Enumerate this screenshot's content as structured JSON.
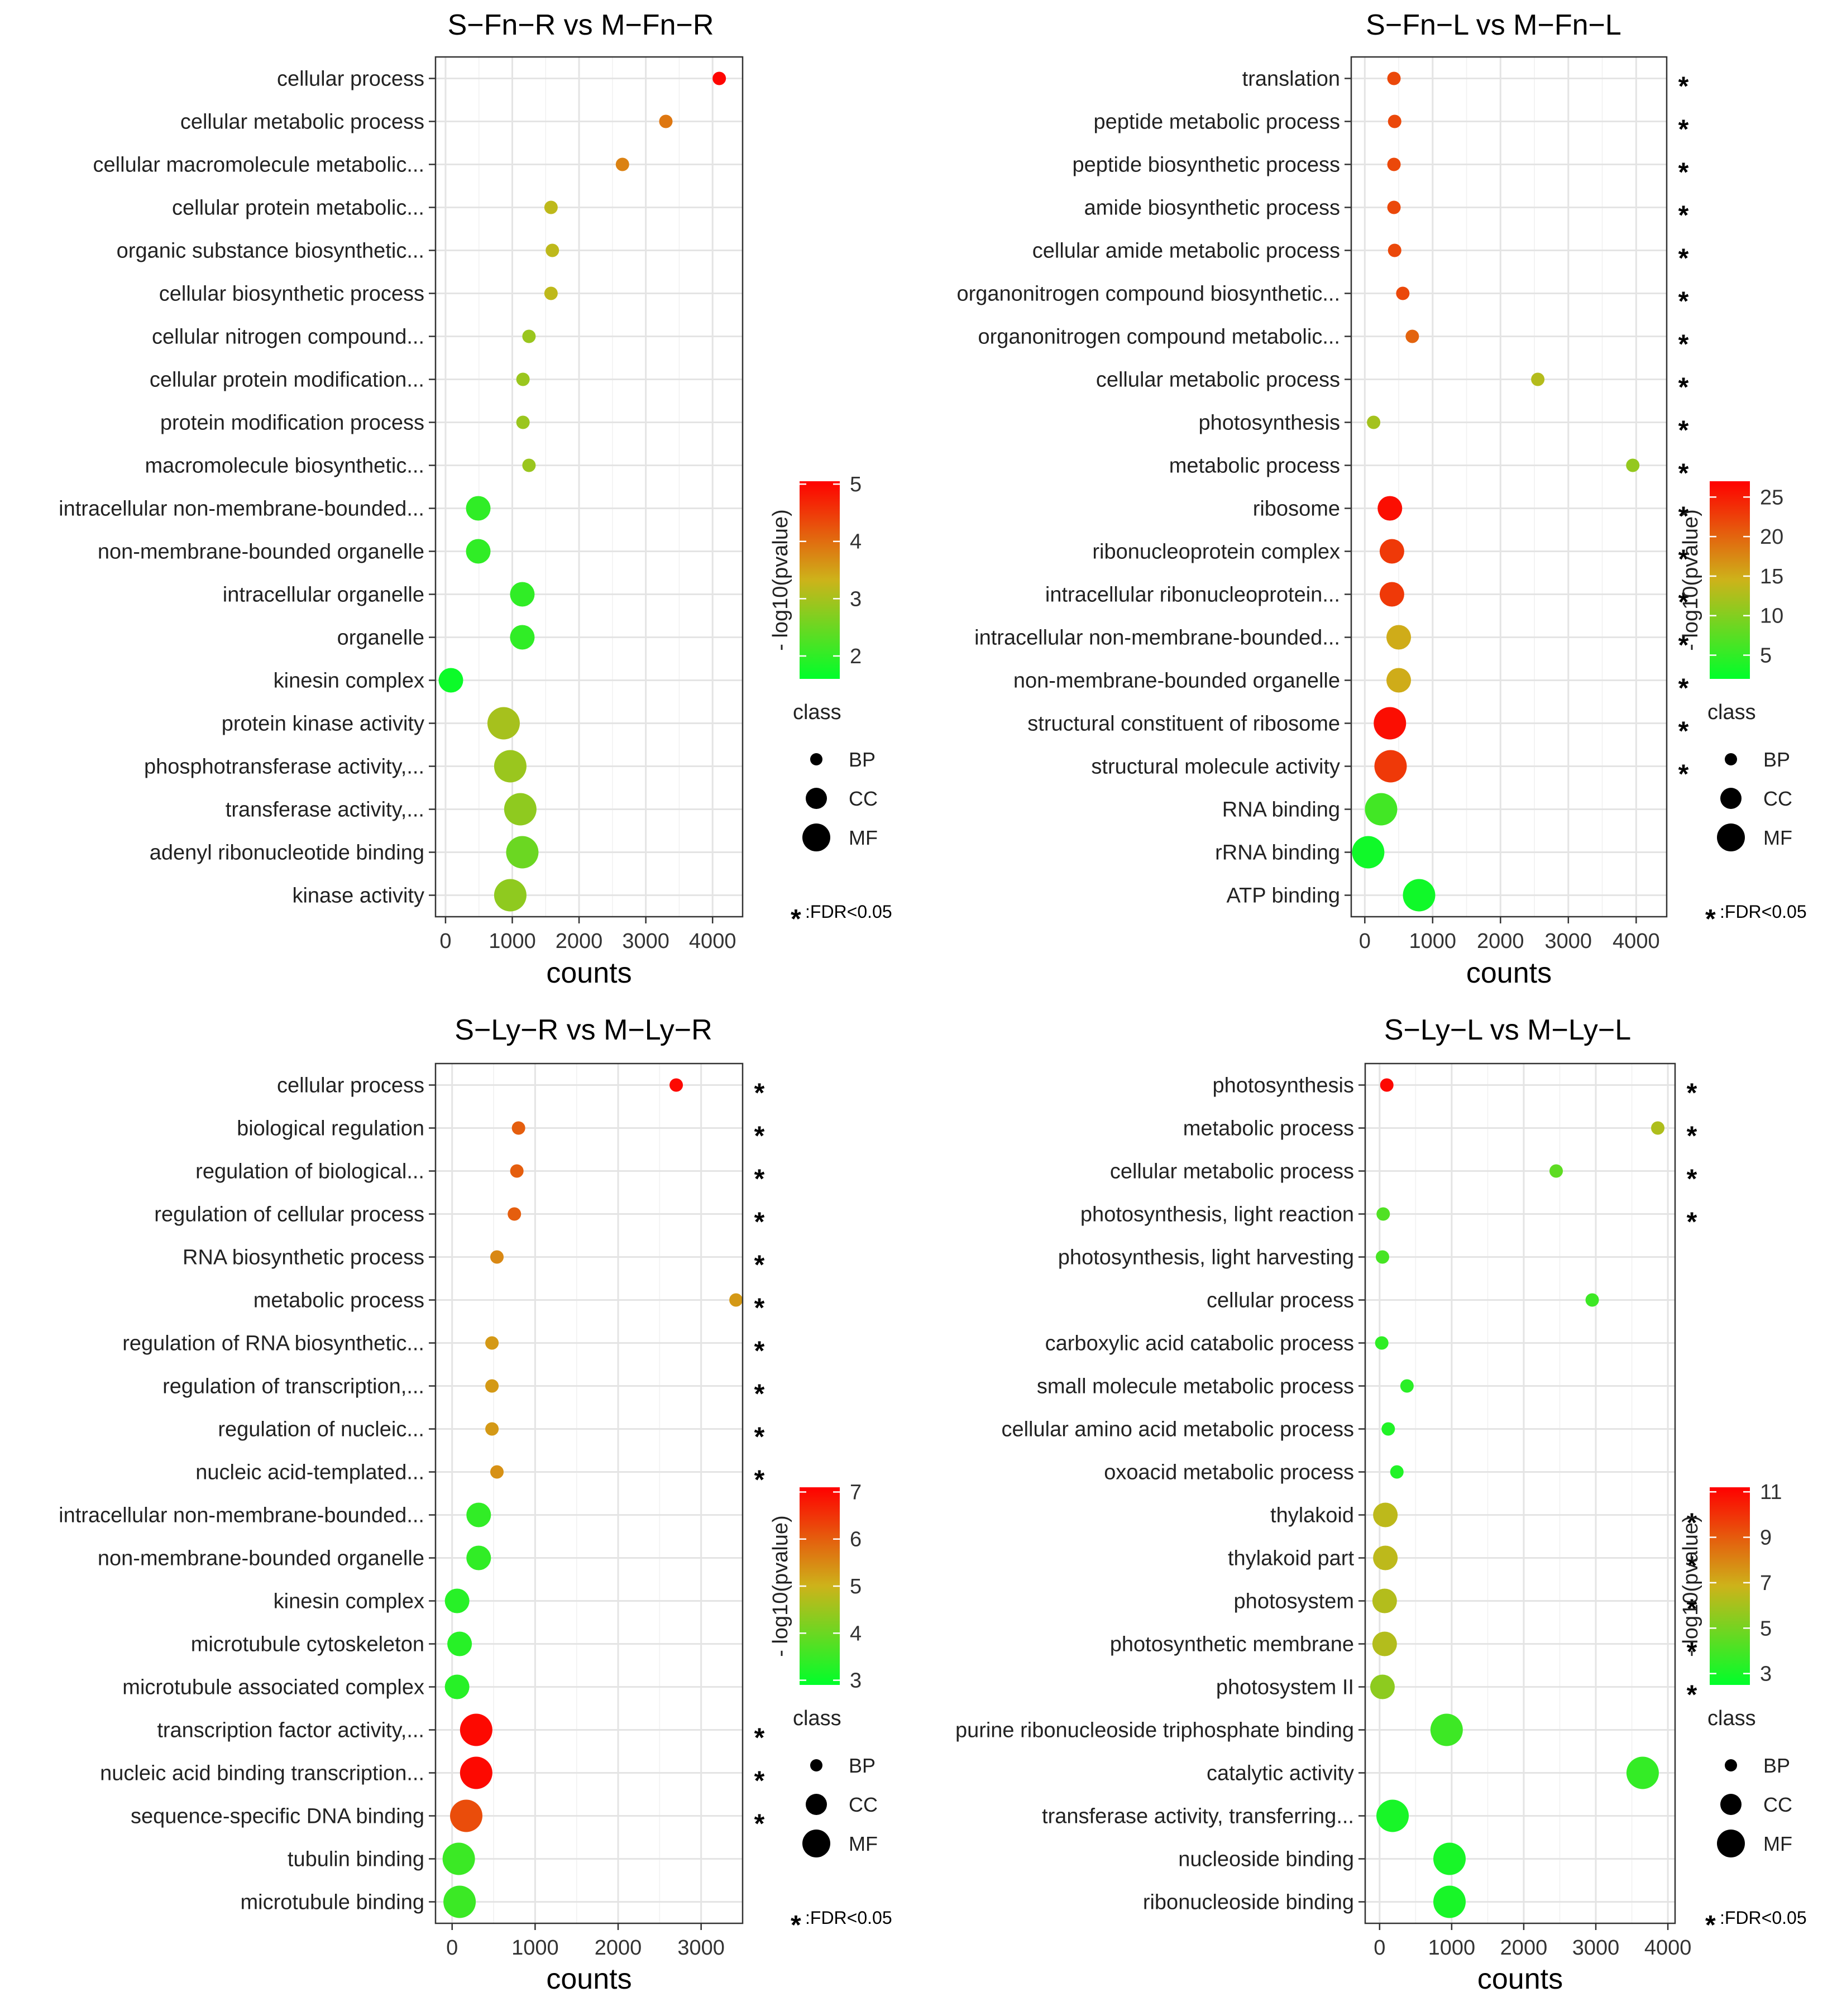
{
  "chart_data": [
    {
      "type": "scatter",
      "title": "S−Fn−R vs M−Fn−R",
      "xlabel": "counts",
      "xlim": [
        -150,
        4450
      ],
      "xticks": [
        0,
        1000,
        2000,
        3000,
        4000
      ],
      "color_label": "- log10(pvalue)",
      "color_range": [
        1.6,
        5.05
      ],
      "color_ticks": [
        2,
        3,
        4,
        5
      ],
      "size_legend": {
        "title": "class",
        "items": [
          "BP",
          "CC",
          "MF"
        ]
      },
      "fdr_note": ":FDR<0.05",
      "points": [
        {
          "term": "cellular process",
          "count": 4100,
          "pvalue": 5.0,
          "class": "BP",
          "fdr": false
        },
        {
          "term": "cellular metabolic process",
          "count": 3300,
          "pvalue": 3.9,
          "class": "BP",
          "fdr": false
        },
        {
          "term": "cellular macromolecule metabolic...",
          "count": 2650,
          "pvalue": 3.8,
          "class": "BP",
          "fdr": false
        },
        {
          "term": "cellular protein metabolic...",
          "count": 1580,
          "pvalue": 3.2,
          "class": "BP",
          "fdr": false
        },
        {
          "term": "organic substance biosynthetic...",
          "count": 1600,
          "pvalue": 3.2,
          "class": "BP",
          "fdr": false
        },
        {
          "term": "cellular biosynthetic process",
          "count": 1580,
          "pvalue": 3.2,
          "class": "BP",
          "fdr": false
        },
        {
          "term": "cellular nitrogen compound...",
          "count": 1250,
          "pvalue": 2.9,
          "class": "BP",
          "fdr": false
        },
        {
          "term": "cellular protein modification...",
          "count": 1160,
          "pvalue": 2.9,
          "class": "BP",
          "fdr": false
        },
        {
          "term": "protein modification process",
          "count": 1160,
          "pvalue": 2.9,
          "class": "BP",
          "fdr": false
        },
        {
          "term": "macromolecule biosynthetic...",
          "count": 1250,
          "pvalue": 2.9,
          "class": "BP",
          "fdr": false
        },
        {
          "term": "intracellular non-membrane-bounded...",
          "count": 490,
          "pvalue": 2.0,
          "class": "CC",
          "fdr": false
        },
        {
          "term": "non-membrane-bounded organelle",
          "count": 490,
          "pvalue": 2.0,
          "class": "CC",
          "fdr": false
        },
        {
          "term": "intracellular organelle",
          "count": 1150,
          "pvalue": 2.0,
          "class": "CC",
          "fdr": false
        },
        {
          "term": "organelle",
          "count": 1150,
          "pvalue": 2.0,
          "class": "CC",
          "fdr": false
        },
        {
          "term": "kinesin complex",
          "count": 80,
          "pvalue": 1.7,
          "class": "CC",
          "fdr": false
        },
        {
          "term": "protein kinase activity",
          "count": 870,
          "pvalue": 3.0,
          "class": "MF",
          "fdr": false
        },
        {
          "term": "phosphotransferase activity,...",
          "count": 970,
          "pvalue": 2.9,
          "class": "MF",
          "fdr": false
        },
        {
          "term": "transferase activity,...",
          "count": 1120,
          "pvalue": 2.8,
          "class": "MF",
          "fdr": false
        },
        {
          "term": "adenyl ribonucleotide binding",
          "count": 1150,
          "pvalue": 2.5,
          "class": "MF",
          "fdr": false
        },
        {
          "term": "kinase activity",
          "count": 970,
          "pvalue": 2.8,
          "class": "MF",
          "fdr": false
        }
      ]
    },
    {
      "type": "scatter",
      "title": "S−Fn−L vs M−Fn−L",
      "xlabel": "counts",
      "xlim": [
        -200,
        4450
      ],
      "xticks": [
        0,
        1000,
        2000,
        3000,
        4000
      ],
      "color_label": "- log10(pvalue)",
      "color_range": [
        2,
        27
      ],
      "color_ticks": [
        5,
        10,
        15,
        20,
        25
      ],
      "size_legend": {
        "title": "class",
        "items": [
          "BP",
          "CC",
          "MF"
        ]
      },
      "fdr_note": ":FDR<0.05",
      "points": [
        {
          "term": "translation",
          "count": 430,
          "pvalue": 22,
          "class": "BP",
          "fdr": true
        },
        {
          "term": "peptide metabolic process",
          "count": 440,
          "pvalue": 22,
          "class": "BP",
          "fdr": true
        },
        {
          "term": "peptide biosynthetic process",
          "count": 430,
          "pvalue": 22,
          "class": "BP",
          "fdr": true
        },
        {
          "term": "amide biosynthetic process",
          "count": 430,
          "pvalue": 22,
          "class": "BP",
          "fdr": true
        },
        {
          "term": "cellular amide metabolic process",
          "count": 440,
          "pvalue": 22,
          "class": "BP",
          "fdr": true
        },
        {
          "term": "organonitrogen compound biosynthetic...",
          "count": 560,
          "pvalue": 22,
          "class": "BP",
          "fdr": true
        },
        {
          "term": "organonitrogen compound metabolic...",
          "count": 700,
          "pvalue": 20,
          "class": "BP",
          "fdr": true
        },
        {
          "term": "cellular metabolic process",
          "count": 2550,
          "pvalue": 13,
          "class": "BP",
          "fdr": true
        },
        {
          "term": "photosynthesis",
          "count": 130,
          "pvalue": 12,
          "class": "BP",
          "fdr": true
        },
        {
          "term": "metabolic process",
          "count": 3950,
          "pvalue": 11,
          "class": "BP",
          "fdr": true
        },
        {
          "term": "ribosome",
          "count": 370,
          "pvalue": 26,
          "class": "CC",
          "fdr": true
        },
        {
          "term": "ribonucleoprotein complex",
          "count": 400,
          "pvalue": 23,
          "class": "CC",
          "fdr": true
        },
        {
          "term": "intracellular ribonucleoprotein...",
          "count": 400,
          "pvalue": 23,
          "class": "CC",
          "fdr": true
        },
        {
          "term": "intracellular non-membrane-bounded...",
          "count": 500,
          "pvalue": 15,
          "class": "CC",
          "fdr": true
        },
        {
          "term": "non-membrane-bounded organelle",
          "count": 500,
          "pvalue": 15,
          "class": "CC",
          "fdr": true
        },
        {
          "term": "structural constituent of ribosome",
          "count": 370,
          "pvalue": 26,
          "class": "MF",
          "fdr": true
        },
        {
          "term": "structural molecule activity",
          "count": 380,
          "pvalue": 23,
          "class": "MF",
          "fdr": true
        },
        {
          "term": "RNA binding",
          "count": 240,
          "pvalue": 6,
          "class": "MF",
          "fdr": false
        },
        {
          "term": "rRNA binding",
          "count": 50,
          "pvalue": 3,
          "class": "MF",
          "fdr": false
        },
        {
          "term": "ATP binding",
          "count": 800,
          "pvalue": 3,
          "class": "MF",
          "fdr": false
        }
      ]
    },
    {
      "type": "scatter",
      "title": "S−Ly−R vs M−Ly−R",
      "xlabel": "counts",
      "xlim": [
        -200,
        3500
      ],
      "xticks": [
        0,
        1000,
        2000,
        3000
      ],
      "color_label": "- log10(pvalue)",
      "color_range": [
        2.9,
        7.1
      ],
      "color_ticks": [
        3,
        4,
        5,
        6,
        7
      ],
      "size_legend": {
        "title": "class",
        "items": [
          "BP",
          "CC",
          "MF"
        ]
      },
      "fdr_note": ":FDR<0.05",
      "points": [
        {
          "term": "cellular process",
          "count": 2700,
          "pvalue": 7.0,
          "class": "BP",
          "fdr": true
        },
        {
          "term": "biological regulation",
          "count": 800,
          "pvalue": 6.0,
          "class": "BP",
          "fdr": true
        },
        {
          "term": "regulation of biological...",
          "count": 780,
          "pvalue": 6.0,
          "class": "BP",
          "fdr": true
        },
        {
          "term": "regulation of cellular process",
          "count": 750,
          "pvalue": 6.0,
          "class": "BP",
          "fdr": true
        },
        {
          "term": "RNA biosynthetic process",
          "count": 540,
          "pvalue": 5.5,
          "class": "BP",
          "fdr": true
        },
        {
          "term": "metabolic process",
          "count": 3420,
          "pvalue": 5.3,
          "class": "BP",
          "fdr": true
        },
        {
          "term": "regulation of RNA biosynthetic...",
          "count": 480,
          "pvalue": 5.3,
          "class": "BP",
          "fdr": true
        },
        {
          "term": "regulation of transcription,...",
          "count": 480,
          "pvalue": 5.3,
          "class": "BP",
          "fdr": true
        },
        {
          "term": "regulation of nucleic...",
          "count": 480,
          "pvalue": 5.3,
          "class": "BP",
          "fdr": true
        },
        {
          "term": "nucleic acid-templated...",
          "count": 540,
          "pvalue": 5.4,
          "class": "BP",
          "fdr": true
        },
        {
          "term": "intracellular non-membrane-bounded...",
          "count": 320,
          "pvalue": 3.4,
          "class": "CC",
          "fdr": false
        },
        {
          "term": "non-membrane-bounded organelle",
          "count": 320,
          "pvalue": 3.4,
          "class": "CC",
          "fdr": false
        },
        {
          "term": "kinesin complex",
          "count": 60,
          "pvalue": 3.3,
          "class": "CC",
          "fdr": false
        },
        {
          "term": "microtubule cytoskeleton",
          "count": 90,
          "pvalue": 3.3,
          "class": "CC",
          "fdr": false
        },
        {
          "term": "microtubule associated complex",
          "count": 60,
          "pvalue": 3.3,
          "class": "CC",
          "fdr": false
        },
        {
          "term": "transcription factor activity,...",
          "count": 290,
          "pvalue": 7.0,
          "class": "MF",
          "fdr": true
        },
        {
          "term": "nucleic acid binding transcription...",
          "count": 290,
          "pvalue": 7.0,
          "class": "MF",
          "fdr": true
        },
        {
          "term": "sequence-specific DNA binding",
          "count": 170,
          "pvalue": 6.2,
          "class": "MF",
          "fdr": true
        },
        {
          "term": "tubulin binding",
          "count": 80,
          "pvalue": 3.5,
          "class": "MF",
          "fdr": false
        },
        {
          "term": "microtubule binding",
          "count": 90,
          "pvalue": 3.5,
          "class": "MF",
          "fdr": false
        }
      ]
    },
    {
      "type": "scatter",
      "title": "S−Ly−L vs M−Ly−L",
      "xlabel": "counts",
      "xlim": [
        -200,
        4100
      ],
      "xticks": [
        0,
        1000,
        2000,
        3000,
        4000
      ],
      "color_label": "- log10(pvalue)",
      "color_range": [
        2.5,
        11.2
      ],
      "color_ticks": [
        3,
        5,
        7,
        9,
        11
      ],
      "size_legend": {
        "title": "class",
        "items": [
          "BP",
          "CC",
          "MF"
        ]
      },
      "fdr_note": ":FDR<0.05",
      "points": [
        {
          "term": "photosynthesis",
          "count": 100,
          "pvalue": 11,
          "class": "BP",
          "fdr": true
        },
        {
          "term": "metabolic process",
          "count": 3860,
          "pvalue": 6.2,
          "class": "BP",
          "fdr": true
        },
        {
          "term": "cellular metabolic process",
          "count": 2450,
          "pvalue": 4.5,
          "class": "BP",
          "fdr": true
        },
        {
          "term": "photosynthesis, light reaction",
          "count": 50,
          "pvalue": 4.2,
          "class": "BP",
          "fdr": true
        },
        {
          "term": "photosynthesis, light harvesting",
          "count": 40,
          "pvalue": 4.0,
          "class": "BP",
          "fdr": false
        },
        {
          "term": "cellular process",
          "count": 2950,
          "pvalue": 3.8,
          "class": "BP",
          "fdr": false
        },
        {
          "term": "carboxylic acid catabolic process",
          "count": 30,
          "pvalue": 3.5,
          "class": "BP",
          "fdr": false
        },
        {
          "term": "small molecule metabolic process",
          "count": 380,
          "pvalue": 3.4,
          "class": "BP",
          "fdr": false
        },
        {
          "term": "cellular amino acid metabolic process",
          "count": 120,
          "pvalue": 3.2,
          "class": "BP",
          "fdr": false
        },
        {
          "term": "oxoacid metabolic process",
          "count": 240,
          "pvalue": 3.2,
          "class": "BP",
          "fdr": false
        },
        {
          "term": "thylakoid",
          "count": 80,
          "pvalue": 6.5,
          "class": "CC",
          "fdr": true
        },
        {
          "term": "thylakoid part",
          "count": 80,
          "pvalue": 6.5,
          "class": "CC",
          "fdr": true
        },
        {
          "term": "photosystem",
          "count": 70,
          "pvalue": 6.3,
          "class": "CC",
          "fdr": true
        },
        {
          "term": "photosynthetic membrane",
          "count": 70,
          "pvalue": 6.3,
          "class": "CC",
          "fdr": true
        },
        {
          "term": "photosystem II",
          "count": 40,
          "pvalue": 5.5,
          "class": "CC",
          "fdr": true
        },
        {
          "term": "purine ribonucleoside triphosphate binding",
          "count": 930,
          "pvalue": 3.8,
          "class": "MF",
          "fdr": false
        },
        {
          "term": "catalytic activity",
          "count": 3650,
          "pvalue": 3.6,
          "class": "MF",
          "fdr": false
        },
        {
          "term": "transferase activity, transferring...",
          "count": 180,
          "pvalue": 3.0,
          "class": "MF",
          "fdr": false
        },
        {
          "term": "nucleoside binding",
          "count": 970,
          "pvalue": 3.0,
          "class": "MF",
          "fdr": false
        },
        {
          "term": "ribonucleoside binding",
          "count": 970,
          "pvalue": 3.0,
          "class": "MF",
          "fdr": false
        }
      ]
    }
  ]
}
